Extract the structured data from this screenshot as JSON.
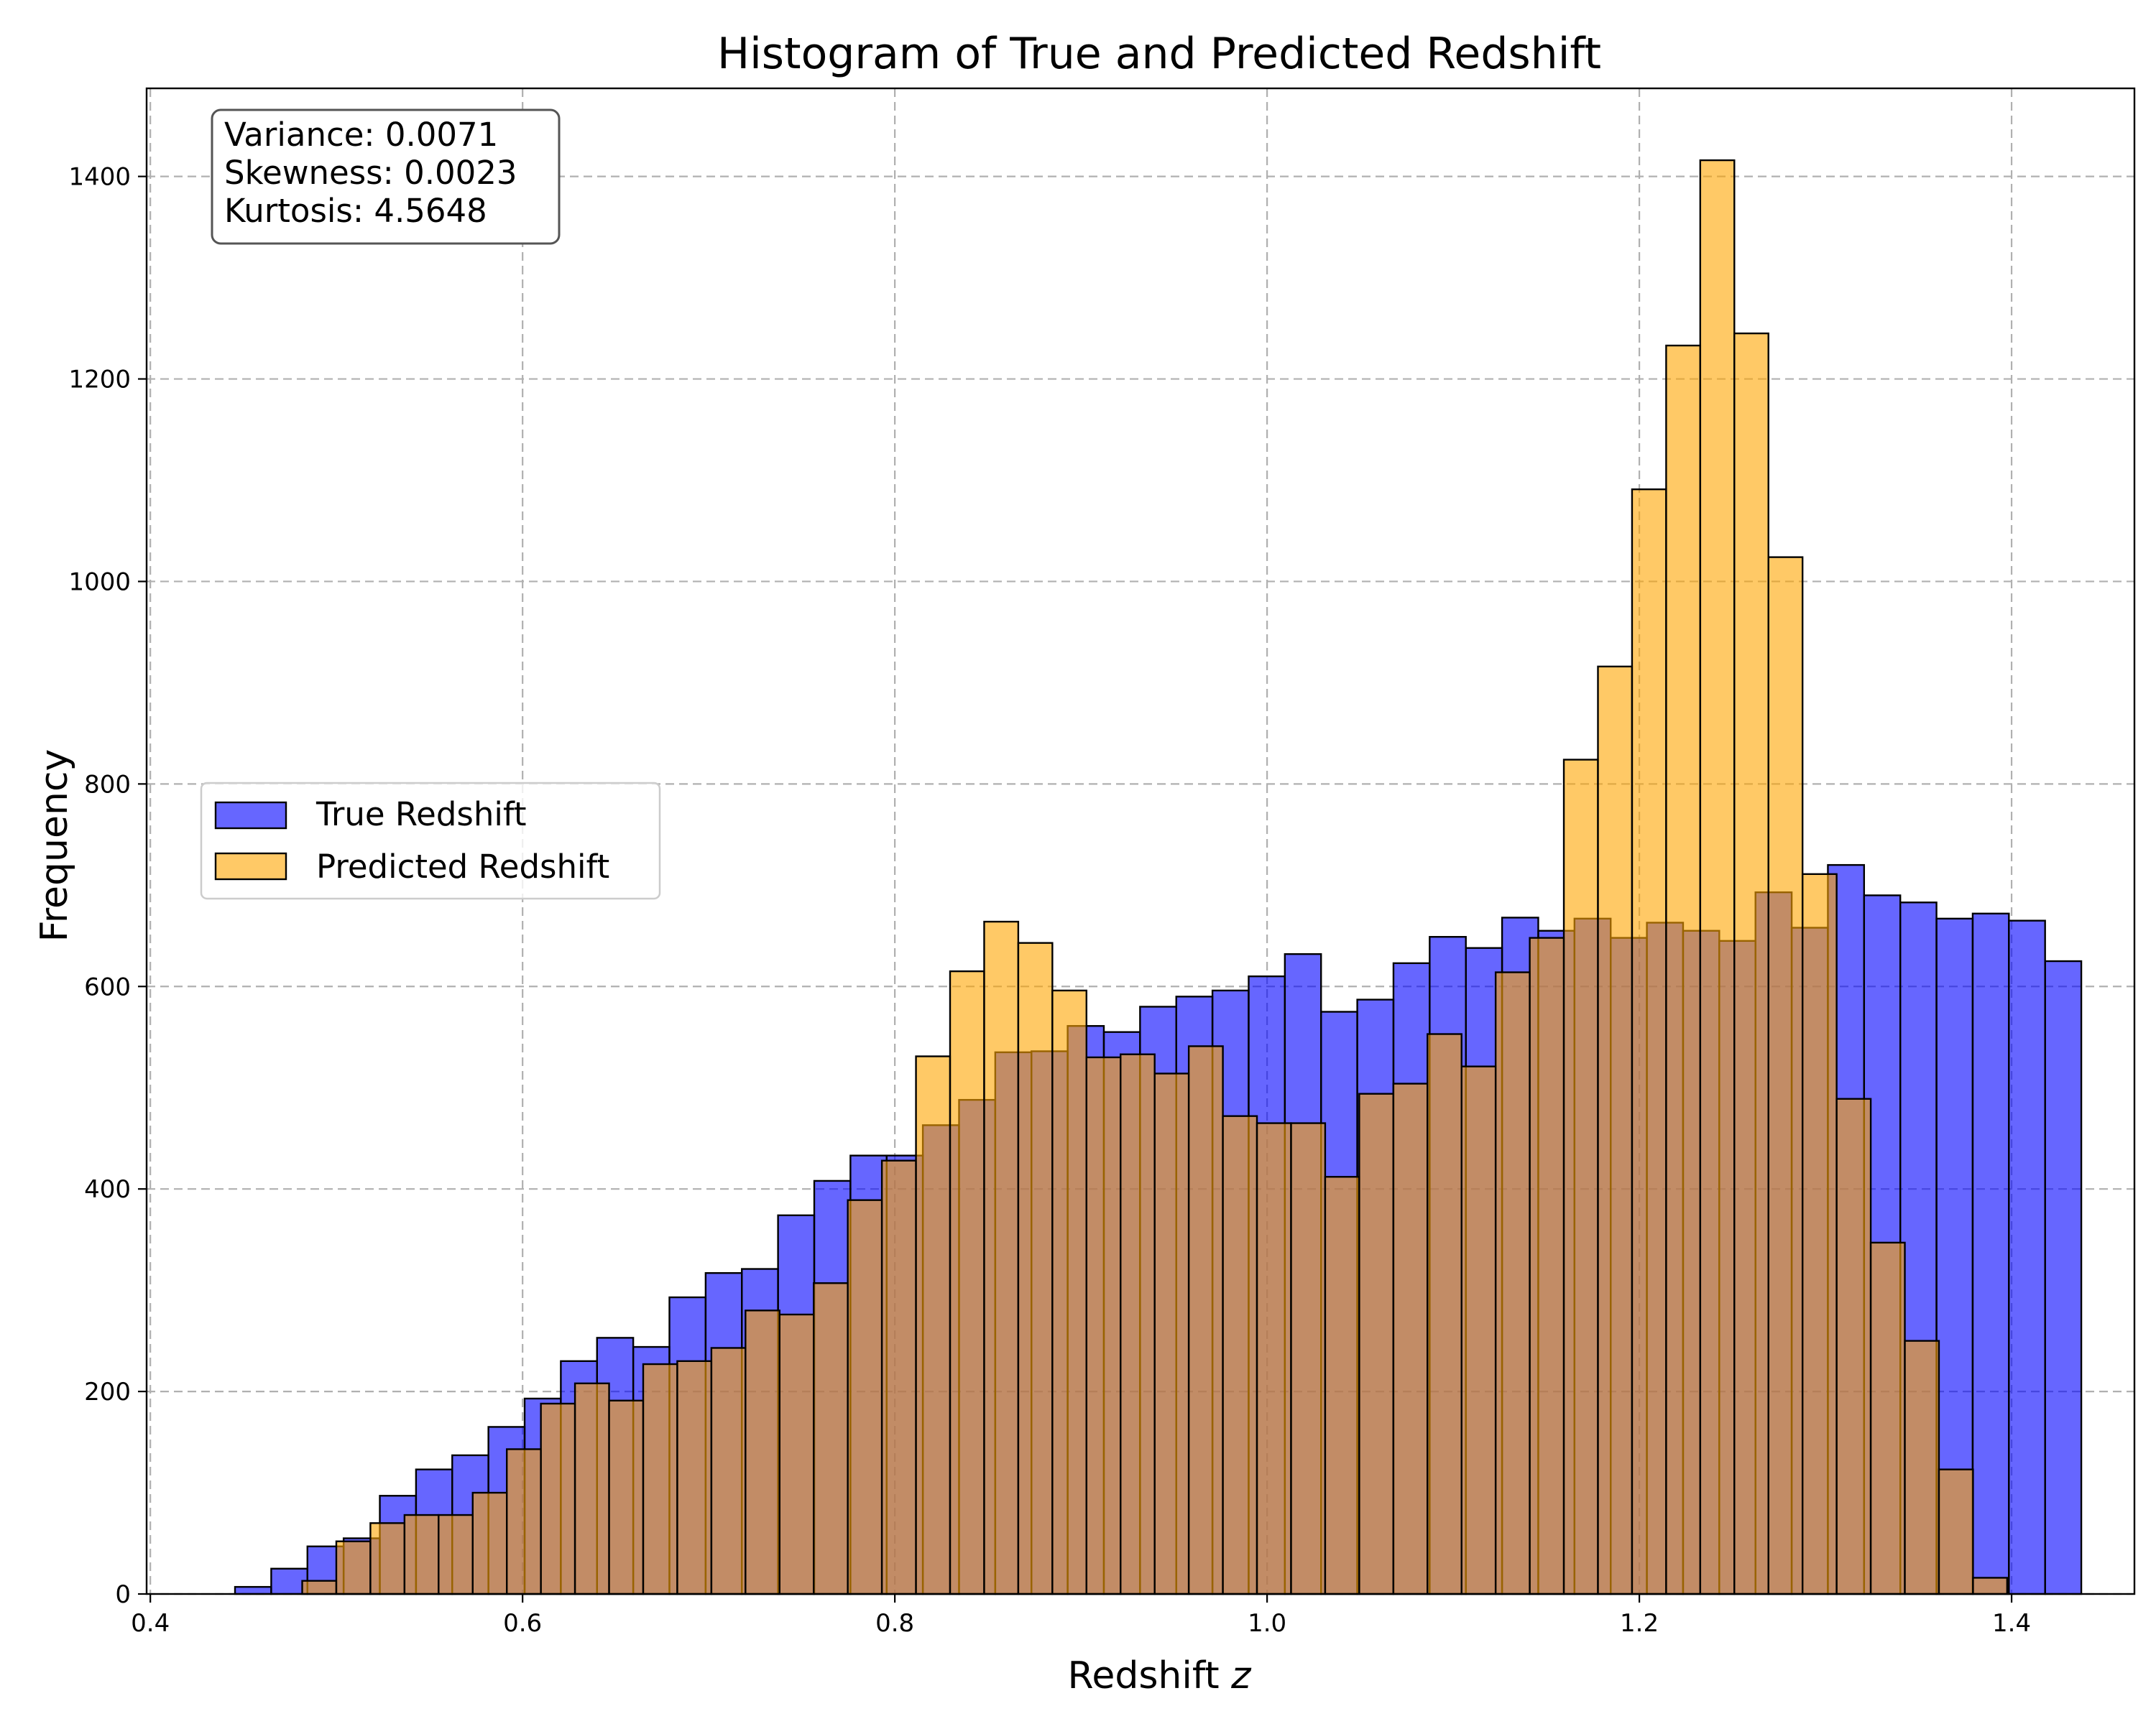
{
  "colors": {
    "true_series": "#0000ff",
    "predicted_series": "#ffa500",
    "bar_edge": "#000000",
    "grid": "#b0b0b0"
  },
  "chart_data": {
    "type": "bar",
    "title": "Histogram of True and Predicted Redshift",
    "xlabel": "Redshift z",
    "xlabel_text": "Redshift ",
    "xlabel_var": "z",
    "ylabel": "Frequency",
    "xlim": [
      0.398,
      1.466
    ],
    "ylim": [
      0,
      1487
    ],
    "xticks": [
      0.4,
      0.6,
      0.8,
      1.0,
      1.2,
      1.4
    ],
    "xtick_labels": [
      "0.4",
      "0.6",
      "0.8",
      "1.0",
      "1.2",
      "1.4"
    ],
    "yticks": [
      0,
      200,
      400,
      600,
      800,
      1000,
      1200,
      1400
    ],
    "ytick_labels": [
      "0",
      "200",
      "400",
      "600",
      "800",
      "1000",
      "1200",
      "1400"
    ],
    "grid": true,
    "legend_position": "center-left",
    "annotation": {
      "lines": [
        "Variance: 0.0071",
        "Skewness: 0.0023",
        "Kurtosis: 4.5648"
      ],
      "position": "top-left"
    },
    "series": [
      {
        "name": "True Redshift",
        "color": "#0000ff",
        "alpha": 0.6,
        "bin_start": 0.4455,
        "bin_width": 0.01945,
        "values": [
          7,
          25,
          47,
          55,
          97,
          123,
          137,
          165,
          193,
          230,
          253,
          244,
          293,
          317,
          321,
          374,
          408,
          433,
          433,
          463,
          488,
          535,
          536,
          561,
          555,
          580,
          590,
          596,
          610,
          632,
          575,
          587,
          623,
          649,
          638,
          668,
          655,
          667,
          648,
          663,
          655,
          645,
          693,
          658,
          720,
          690,
          683,
          667,
          672,
          665,
          625
        ]
      },
      {
        "name": "Predicted Redshift",
        "color": "#ffa500",
        "alpha": 0.6,
        "bin_start": 0.4816,
        "bin_width": 0.01832,
        "values": [
          13,
          52,
          70,
          78,
          78,
          100,
          143,
          188,
          208,
          191,
          227,
          230,
          243,
          280,
          276,
          307,
          389,
          428,
          531,
          615,
          664,
          643,
          596,
          530,
          533,
          514,
          541,
          472,
          465,
          465,
          412,
          494,
          504,
          553,
          521,
          614,
          648,
          824,
          916,
          1091,
          1233,
          1416,
          1245,
          1024,
          711,
          489,
          347,
          250,
          123,
          16
        ]
      }
    ]
  }
}
